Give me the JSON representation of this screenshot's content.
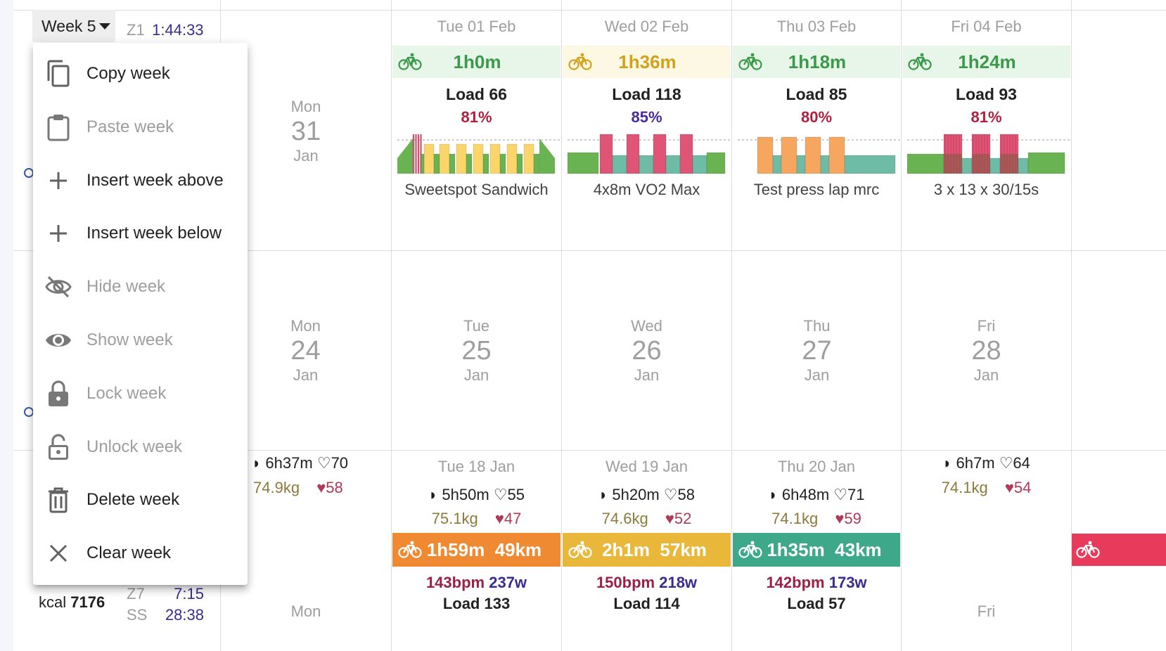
{
  "week_button": {
    "label": "Week 5"
  },
  "week_summary": {
    "zone_label": "Z1",
    "zone_time": "1:44:33"
  },
  "bottom_left": {
    "kcal_label": "kcal",
    "kcal_value": "7176",
    "zone7_label": "Z7",
    "zone7_time": "7:15",
    "ss_label": "SS",
    "ss_time": "28:38"
  },
  "menu": {
    "items": [
      {
        "label": "Copy week",
        "icon": "copy-icon",
        "enabled": true
      },
      {
        "label": "Paste week",
        "icon": "clipboard-icon",
        "enabled": false
      },
      {
        "label": "Insert week above",
        "icon": "plus-icon",
        "enabled": true
      },
      {
        "label": "Insert week below",
        "icon": "plus-icon",
        "enabled": true
      },
      {
        "label": "Hide week",
        "icon": "eye-off-icon",
        "enabled": false
      },
      {
        "label": "Show week",
        "icon": "eye-icon",
        "enabled": false
      },
      {
        "label": "Lock week",
        "icon": "lock-icon",
        "enabled": false
      },
      {
        "label": "Unlock week",
        "icon": "lock-open-icon",
        "enabled": false
      },
      {
        "label": "Delete week",
        "icon": "trash-icon",
        "enabled": true
      },
      {
        "label": "Clear week",
        "icon": "close-icon",
        "enabled": true
      }
    ]
  },
  "colors": {
    "banner_green_bg": "#e8f5e9",
    "banner_yellow_bg": "#fdf8e4",
    "green_text": "#3a9a4a",
    "yellow_text": "#d4a21a",
    "pct_red": "#b0203e",
    "pct_purple": "#4a2aa0",
    "act_orange": "#f08a32",
    "act_yellow": "#e9b83a",
    "act_teal": "#3ea88a",
    "act_red": "#e83a5a"
  },
  "week_row1": {
    "mon": {
      "dow": "Mon",
      "num": "31",
      "mon": "Jan"
    },
    "days": [
      {
        "date": "Tue 01 Feb",
        "duration": "1h0m",
        "banner": "green",
        "load": "Load 66",
        "pct": "81%",
        "pct_color": "red",
        "name": "Sweetspot Sandwich",
        "chart_type": "sweetspot"
      },
      {
        "date": "Wed 02 Feb",
        "duration": "1h36m",
        "banner": "yellow",
        "load": "Load 118",
        "pct": "85%",
        "pct_color": "purple",
        "name": "4x8m VO2 Max",
        "chart_type": "vo2"
      },
      {
        "date": "Thu 03 Feb",
        "duration": "1h18m",
        "banner": "green",
        "load": "Load 85",
        "pct": "80%",
        "pct_color": "red",
        "name": "Test press lap mrc",
        "chart_type": "test"
      },
      {
        "date": "Fri 04 Feb",
        "duration": "1h24m",
        "banner": "green",
        "load": "Load 93",
        "pct": "81%",
        "pct_color": "red",
        "name": "3 x 13 x 30/15s",
        "chart_type": "intervals"
      }
    ]
  },
  "week_row2": {
    "days": [
      {
        "dow": "Mon",
        "num": "24",
        "mon": "Jan"
      },
      {
        "dow": "Tue",
        "num": "25",
        "mon": "Jan"
      },
      {
        "dow": "Wed",
        "num": "26",
        "mon": "Jan"
      },
      {
        "dow": "Thu",
        "num": "27",
        "mon": "Jan"
      },
      {
        "dow": "Fri",
        "num": "28",
        "mon": "Jan"
      }
    ]
  },
  "week_row3": {
    "mon": {
      "sleep": "6h37m",
      "hrv": "70",
      "kg": "74.9kg",
      "rhr": "58",
      "next_dow": "Mon"
    },
    "days": [
      {
        "date": "Tue 18 Jan",
        "sleep": "5h50m",
        "hrv": "55",
        "kg": "75.1kg",
        "rhr": "47",
        "activity": "1h59m  49km",
        "act_color": "orange",
        "bpm": "143bpm",
        "watts": "237w",
        "load": "Load 133"
      },
      {
        "date": "Wed 19 Jan",
        "sleep": "5h20m",
        "hrv": "58",
        "kg": "74.6kg",
        "rhr": "52",
        "activity": "2h1m  57km",
        "act_color": "yellow",
        "bpm": "150bpm",
        "watts": "218w",
        "load": "Load 114"
      },
      {
        "date": "Thu 20 Jan",
        "sleep": "6h48m",
        "hrv": "71",
        "kg": "74.1kg",
        "rhr": "59",
        "activity": "1h35m  43km",
        "act_color": "teal",
        "bpm": "142bpm",
        "watts": "173w",
        "load": "Load 57"
      }
    ],
    "fri": {
      "sleep": "6h7m",
      "hrv": "64",
      "kg": "74.1kg",
      "rhr": "54",
      "next_dow": "Fri"
    }
  }
}
